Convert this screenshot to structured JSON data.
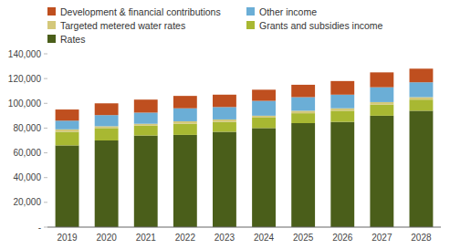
{
  "chart_data": {
    "type": "bar",
    "stacked": true,
    "categories": [
      "2019",
      "2020",
      "2021",
      "2022",
      "2023",
      "2024",
      "2025",
      "2026",
      "2027",
      "2028"
    ],
    "series": [
      {
        "name": "Rates",
        "color": "#4a5e1a",
        "values": [
          66000,
          70000,
          74000,
          74500,
          77000,
          80000,
          84000,
          85000,
          90000,
          94000
        ]
      },
      {
        "name": "Grants and subsidies income",
        "color": "#a8b832",
        "values": [
          11000,
          10000,
          8000,
          9000,
          8000,
          8500,
          8000,
          9000,
          9000,
          9000
        ]
      },
      {
        "name": "Targeted metered water rates",
        "color": "#d4c87a",
        "values": [
          2000,
          1500,
          1500,
          2000,
          2000,
          1500,
          2000,
          2000,
          2000,
          2000
        ]
      },
      {
        "name": "Other income",
        "color": "#6baed6",
        "values": [
          7000,
          9000,
          9000,
          10500,
          10000,
          12000,
          11000,
          11000,
          12000,
          12000
        ]
      },
      {
        "name": "Development & financial contributions",
        "color": "#bf4f1f",
        "values": [
          9000,
          9500,
          10500,
          10000,
          10000,
          9000,
          10000,
          11000,
          12000,
          11000
        ]
      }
    ],
    "ylim": [
      0,
      140000
    ],
    "yticks": [
      {
        "value": 0,
        "label": "-"
      },
      {
        "value": 20000,
        "label": "20,000"
      },
      {
        "value": 40000,
        "label": "40,000"
      },
      {
        "value": 60000,
        "label": "60,000"
      },
      {
        "value": 80000,
        "label": "80,000"
      },
      {
        "value": 100000,
        "label": "100,000"
      },
      {
        "value": 120000,
        "label": "120,000"
      },
      {
        "value": 140000,
        "label": "140,000"
      }
    ],
    "grid": false,
    "legend": "top"
  }
}
